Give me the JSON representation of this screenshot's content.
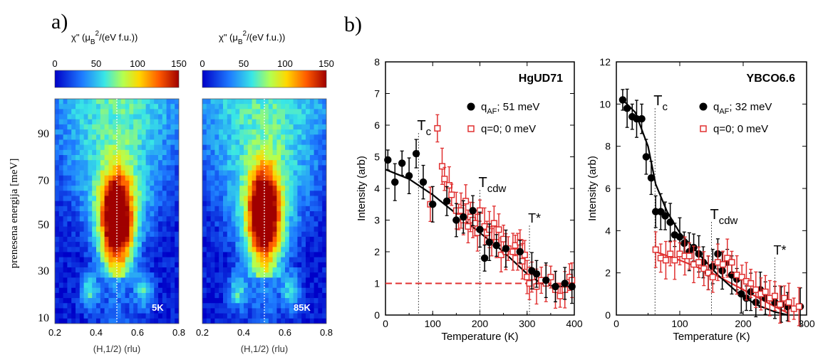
{
  "panels": {
    "a_label": "a)",
    "b_label": "b)"
  },
  "heatmaps": {
    "colorbar": {
      "label_prefix": "χ\" (μ",
      "label_sub": "B",
      "label_sup": "2",
      "label_suffix": "/(eV f.u.))",
      "ticks": [
        "0",
        "50",
        "100",
        "150"
      ],
      "range": [
        0,
        150
      ]
    },
    "ylabel": "prenesena energija [meV]",
    "yticks": [
      "10",
      "30",
      "50",
      "70",
      "90"
    ],
    "xticks": [
      "0.2",
      "0.4",
      "0.6",
      "0.8"
    ],
    "xlabel": "(H,1/2) (rlu)",
    "maps": [
      {
        "label": "5K",
        "peak_energy": 54,
        "peak_width": 0.12
      },
      {
        "label": "85K",
        "peak_energy": 56,
        "peak_width": 0.13
      }
    ]
  },
  "chart_data": [
    {
      "type": "heatmap",
      "title": "5K",
      "x_range": [
        0.2,
        0.8
      ],
      "y_range": [
        8,
        105
      ],
      "xlabel": "(H,1/2) (rlu)",
      "ylabel": "prenesena energija [meV]",
      "colorbar_range": [
        0,
        150
      ],
      "colors": [
        "#0000c8",
        "#1e7bff",
        "#39e6e6",
        "#b4ff50",
        "#ffd700",
        "#ff6a00",
        "#b40000"
      ]
    },
    {
      "type": "heatmap",
      "title": "85K",
      "x_range": [
        0.2,
        0.8
      ],
      "y_range": [
        8,
        105
      ],
      "xlabel": "(H,1/2) (rlu)",
      "ylabel": "prenesena energija [meV]",
      "colorbar_range": [
        0,
        150
      ]
    },
    {
      "type": "scatter",
      "title": "HgUD71",
      "xlabel": "Temperature (K)",
      "ylabel": "Intensity (arb)",
      "xlim": [
        0,
        400
      ],
      "ylim": [
        0,
        8
      ],
      "xticks": [
        "0",
        "100",
        "200",
        "300",
        "400"
      ],
      "yticks": [
        "0",
        "1",
        "2",
        "3",
        "4",
        "5",
        "6",
        "7",
        "8"
      ],
      "legend": [
        "51 meV",
        "q=0;  0 meV"
      ],
      "legend_placement": "top-right",
      "markers": [
        {
          "name": "Tc",
          "x": 70
        },
        {
          "name": "Tcdw",
          "x": 200
        },
        {
          "name": "T*",
          "x": 305
        }
      ],
      "series": [
        {
          "name": "51 meV",
          "color": "#000000",
          "x": [
            5,
            20,
            35,
            50,
            65,
            80
          ],
          "y": [
            4.9,
            4.2,
            4.8,
            4.4,
            5.1,
            4.2
          ]
        },
        {
          "name": "q=0;  0 meV",
          "color": "#e03030",
          "x": [
            95,
            110,
            120,
            125,
            135,
            140,
            150,
            155,
            160,
            165,
            170,
            175,
            180,
            185,
            190,
            195,
            200,
            210,
            215,
            220,
            225,
            230,
            235,
            240,
            245,
            250,
            255,
            260,
            270,
            275,
            280,
            285,
            290,
            295,
            300,
            305,
            310,
            320,
            330,
            340,
            350,
            360,
            370,
            380,
            390,
            395
          ],
          "y": [
            3.5,
            5.9,
            4.7,
            4.3,
            4.1,
            3.8,
            3.3,
            3.1,
            3.3,
            3.0,
            3.6,
            2.8,
            3.1,
            3.0,
            2.9,
            2.6,
            3.3,
            2.8,
            2.6,
            2.7,
            2.3,
            2.9,
            2.3,
            2.7,
            1.9,
            2.4,
            2.0,
            2.1,
            2.0,
            2.2,
            2.0,
            2.3,
            1.7,
            1.9,
            1.2,
            1.0,
            1.2,
            0.9,
            1.1,
            1.0,
            1.2,
            0.8,
            0.6,
            0.8,
            1.2,
            1.1
          ]
        },
        {
          "name": "black-more",
          "color": "#000000",
          "x": [
            100,
            130,
            150,
            165,
            185,
            200,
            210,
            220,
            235,
            255,
            285,
            310,
            320,
            340,
            360,
            380,
            395
          ],
          "y": [
            3.5,
            3.6,
            3.0,
            3.1,
            3.3,
            2.7,
            1.8,
            2.3,
            2.2,
            2.1,
            2.0,
            1.4,
            1.3,
            1.1,
            0.9,
            1.0,
            0.9
          ]
        }
      ],
      "fit": {
        "x": [
          0,
          50,
          100,
          150,
          200,
          250,
          300,
          330,
          360,
          400
        ],
        "y": [
          4.6,
          4.3,
          3.8,
          3.2,
          2.6,
          2.0,
          1.3,
          1.0,
          0.9,
          0.9
        ]
      },
      "baseline": 1.0
    },
    {
      "type": "scatter",
      "title": "YBCO6.6",
      "xlabel": "Temperature (K)",
      "ylabel": "Intensity (arb)",
      "xlim": [
        0,
        300
      ],
      "ylim": [
        0,
        12
      ],
      "xticks": [
        "0",
        "100",
        "200",
        "300"
      ],
      "yticks": [
        "0",
        "2",
        "4",
        "6",
        "8",
        "10",
        "12"
      ],
      "legend": [
        "32 meV",
        "q=0;  0 meV"
      ],
      "legend_placement": "top-right",
      "markers": [
        {
          "name": "Tc",
          "x": 61
        },
        {
          "name": "Tcdw",
          "x": 150
        },
        {
          "name": "T*",
          "x": 250
        }
      ],
      "series": [
        {
          "name": "32 meV",
          "color": "#000000",
          "x": [
            10,
            17,
            25,
            32,
            40,
            47,
            55,
            62,
            70,
            77,
            85,
            92,
            100,
            107,
            115,
            122,
            130,
            137,
            145,
            152,
            160,
            167,
            175,
            182,
            190,
            197,
            205,
            212,
            220,
            227,
            235,
            250,
            260,
            270,
            290
          ],
          "y": [
            10.2,
            9.8,
            9.4,
            9.3,
            9.3,
            7.5,
            6.5,
            4.9,
            4.9,
            4.7,
            4.4,
            3.8,
            3.7,
            3.4,
            3.0,
            3.2,
            2.9,
            2.5,
            2.0,
            2.3,
            2.9,
            2.1,
            2.5,
            1.9,
            1.7,
            1.0,
            0.8,
            1.1,
            0.6,
            1.2,
            0.8,
            0.6,
            0.5,
            0.4,
            0.4
          ]
        },
        {
          "name": "q=0;  0 meV",
          "color": "#e03030",
          "x": [
            62,
            70,
            78,
            85,
            92,
            100,
            108,
            115,
            122,
            130,
            138,
            145,
            152,
            160,
            168,
            175,
            182,
            190,
            198,
            205,
            212,
            220,
            228,
            235,
            242,
            250,
            258,
            265,
            272,
            280,
            288
          ],
          "y": [
            3.1,
            2.7,
            2.6,
            2.9,
            2.6,
            2.9,
            2.8,
            2.8,
            2.4,
            2.5,
            2.2,
            2.0,
            1.8,
            2.5,
            2.4,
            2.7,
            2.5,
            1.9,
            1.8,
            1.6,
            1.5,
            1.2,
            1.0,
            1.1,
            0.8,
            0.9,
            0.5,
            0.8,
            0.6,
            0.3,
            0.4
          ]
        }
      ],
      "fit_black": {
        "x": [
          10,
          30,
          50,
          62,
          80,
          100,
          130,
          160,
          190,
          220,
          250,
          270
        ],
        "y": [
          10.2,
          9.6,
          8.0,
          6.2,
          4.9,
          3.9,
          2.9,
          1.9,
          1.1,
          0.5,
          0.15,
          0.0
        ]
      },
      "fit_red": {
        "x": [
          62,
          100,
          150,
          200,
          250,
          270
        ],
        "y": [
          3.0,
          2.6,
          2.0,
          1.2,
          0.4,
          0.1
        ]
      }
    }
  ],
  "graph_text": {
    "legend_black_prefix": "q",
    "legend_black_sub": "AF",
    "legend_black_suffix_1": "; 51 meV",
    "legend_black_suffix_2": "; 32 meV",
    "legend_red_1": "q=0;  0 meV",
    "legend_red_2": "q=0;  0 meV",
    "title_1": "HgUD71",
    "title_2": "YBCO6.6",
    "tc": "T",
    "tc_sub": "c",
    "tcdw": "T",
    "tcdw_sub": "cdw",
    "tstar": "T*",
    "xlabel": "Temperature (K)",
    "ylabel": "Intensity (arb)"
  }
}
